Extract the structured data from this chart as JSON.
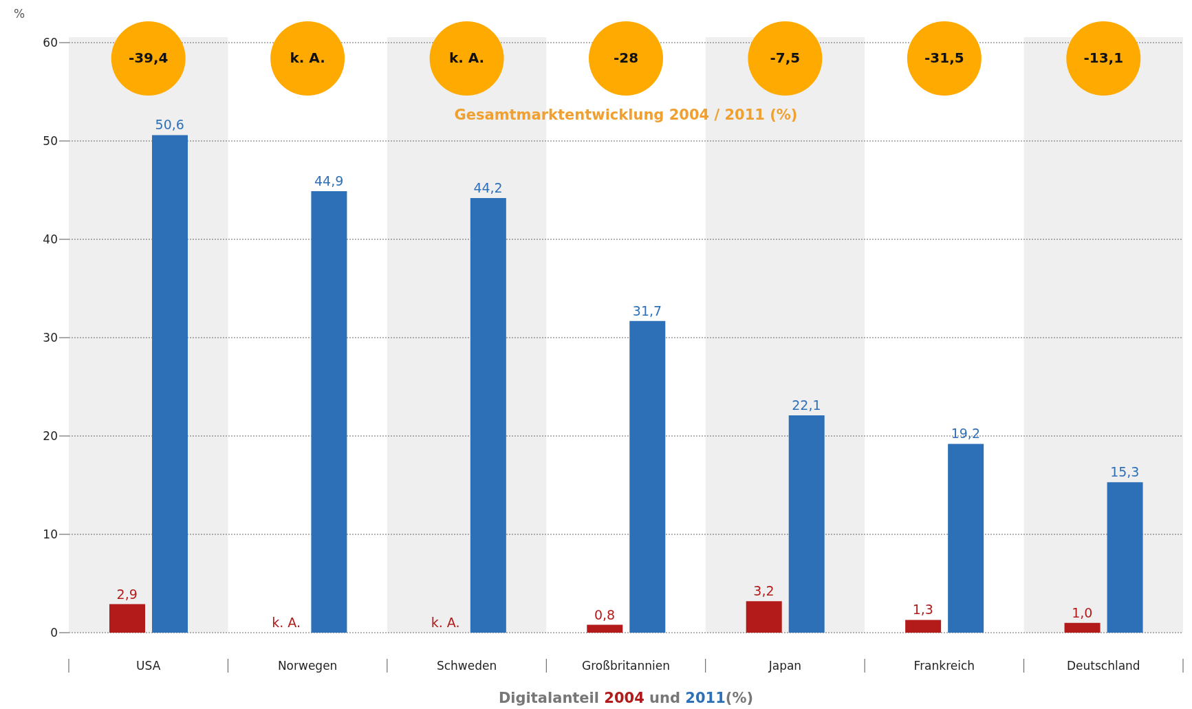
{
  "chart_data": {
    "type": "bar",
    "subtitle": "Gesamtmarktentwicklung 2004 / 2011 (%)",
    "xlabel": "Digitalanteil 2004 und 2011(%)",
    "ylabel": "%",
    "categories": [
      "USA",
      "Norwegen",
      "Schweden",
      "Großbritannien",
      "Japan",
      "Frankreich",
      "Deutschland"
    ],
    "series": [
      {
        "color": "#b31b1b",
        "values": [
          2.9,
          null,
          null,
          0.8,
          3.2,
          1.3,
          1.0
        ],
        "value_labels": [
          "2,9",
          "k. A.",
          "k. A.",
          "0,8",
          "3,2",
          "1,3",
          "1,0"
        ]
      },
      {
        "color": "#2e70b8",
        "values": [
          50.6,
          44.9,
          44.2,
          31.7,
          22.1,
          19.2,
          15.3
        ],
        "value_labels": [
          "50,6",
          "44,9",
          "44,2",
          "31,7",
          "22,1",
          "19,2",
          "15,3"
        ]
      }
    ],
    "annotations": [
      "-39,4",
      "k. A.",
      "k. A.",
      "-28",
      "-7,5",
      "-31,5",
      "-13,1"
    ],
    "ylim": [
      0,
      60
    ],
    "yticks": [
      0,
      10,
      20,
      30,
      40,
      50,
      60
    ],
    "grid": "y",
    "legend": false
  }
}
